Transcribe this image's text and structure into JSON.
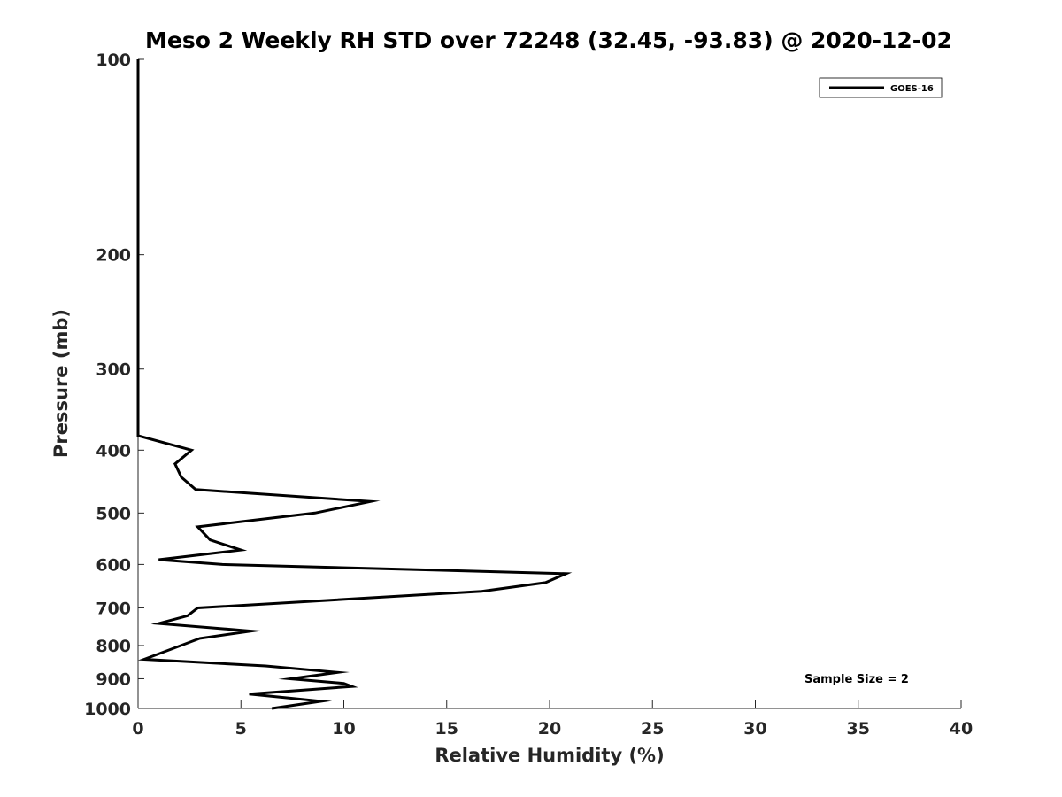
{
  "chart_data": {
    "type": "line",
    "title": "Meso 2 Weekly RH STD over 72248 (32.45, -93.83) @ 2020-12-02",
    "xlabel": "Relative Humidity (%)",
    "ylabel": "Pressure (mb)",
    "xlim": [
      0,
      40
    ],
    "ylim": [
      100,
      1000
    ],
    "yscale": "log",
    "y_reversed": true,
    "x_ticks": [
      0,
      5,
      10,
      15,
      20,
      25,
      30,
      35,
      40
    ],
    "y_ticks": [
      100,
      200,
      300,
      400,
      500,
      600,
      700,
      800,
      900,
      1000
    ],
    "grid": false,
    "legend_position": "top-right",
    "series": [
      {
        "name": "GOES-16",
        "color": "#000000",
        "points": [
          {
            "x": 0,
            "y": 100
          },
          {
            "x": 0,
            "y": 200
          },
          {
            "x": 0,
            "y": 300
          },
          {
            "x": 0,
            "y": 380
          },
          {
            "x": 2.6,
            "y": 400
          },
          {
            "x": 1.8,
            "y": 420
          },
          {
            "x": 2.1,
            "y": 440
          },
          {
            "x": 2.8,
            "y": 460
          },
          {
            "x": 11.3,
            "y": 480
          },
          {
            "x": 8.6,
            "y": 500
          },
          {
            "x": 2.9,
            "y": 525
          },
          {
            "x": 3.5,
            "y": 550
          },
          {
            "x": 5.0,
            "y": 570
          },
          {
            "x": 1.0,
            "y": 590
          },
          {
            "x": 4.1,
            "y": 600
          },
          {
            "x": 20.8,
            "y": 620
          },
          {
            "x": 19.8,
            "y": 640
          },
          {
            "x": 16.7,
            "y": 660
          },
          {
            "x": 2.9,
            "y": 700
          },
          {
            "x": 2.4,
            "y": 720
          },
          {
            "x": 1.0,
            "y": 740
          },
          {
            "x": 5.5,
            "y": 760
          },
          {
            "x": 3.0,
            "y": 780
          },
          {
            "x": 0.3,
            "y": 840
          },
          {
            "x": 6.2,
            "y": 860
          },
          {
            "x": 9.7,
            "y": 880
          },
          {
            "x": 7.4,
            "y": 900
          },
          {
            "x": 10.0,
            "y": 915
          },
          {
            "x": 10.4,
            "y": 925
          },
          {
            "x": 5.4,
            "y": 950
          },
          {
            "x": 8.9,
            "y": 975
          },
          {
            "x": 6.5,
            "y": 1000
          }
        ]
      }
    ],
    "annotation": "Sample Size = 2"
  }
}
